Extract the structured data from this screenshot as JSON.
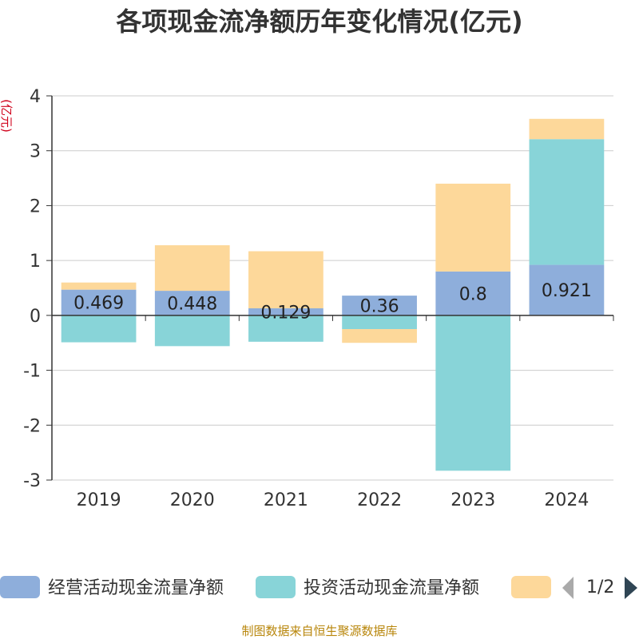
{
  "title": "各项现金流净额历年变化情况(亿元)",
  "unit_label": "(亿元)",
  "source": "制图数据来自恒生聚源数据库",
  "legend": {
    "page": "1/2",
    "prev_icon": "triangle-left-icon",
    "next_icon": "triangle-right-icon",
    "prev_color": "#aaaaaa",
    "next_color": "#2f4554"
  },
  "chart_data": {
    "type": "bar",
    "stacked": true,
    "title": "各项现金流净额历年变化情况(亿元)",
    "ylabel": "(亿元)",
    "categories": [
      "2019",
      "2020",
      "2021",
      "2022",
      "2023",
      "2024"
    ],
    "ylim": [
      -3,
      4
    ],
    "yticks": [
      -3,
      -2,
      -1,
      0,
      1,
      2,
      3,
      4
    ],
    "grid": true,
    "legend_position": "bottom",
    "series": [
      {
        "name": "经营活动现金流量净额",
        "color": "#8eaedb",
        "values": [
          0.469,
          0.448,
          0.129,
          0.36,
          0.8,
          0.921
        ],
        "labels": [
          "0.469",
          "0.448",
          "0.129",
          "0.36",
          "0.8",
          "0.921"
        ]
      },
      {
        "name": "投资活动现金流量净额",
        "color": "#88d4d8",
        "values": [
          -0.49,
          -0.56,
          -0.48,
          -0.25,
          -2.83,
          2.29
        ]
      },
      {
        "name": "",
        "color": "#fdd89a",
        "values": [
          0.13,
          0.83,
          1.04,
          -0.25,
          1.6,
          0.37
        ]
      }
    ]
  }
}
